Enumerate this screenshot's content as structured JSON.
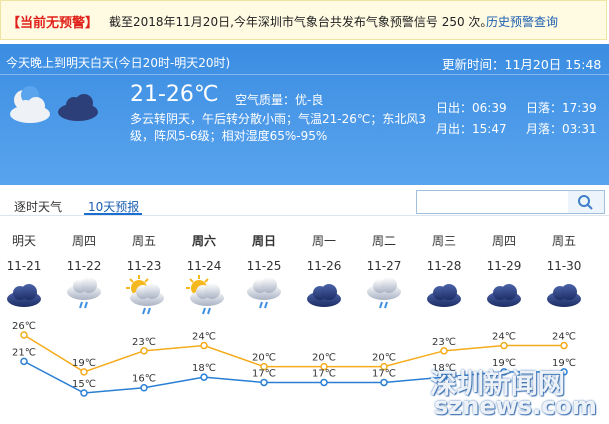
{
  "banner": {
    "alert": "【当前无预警】",
    "text": "截至2018年11月20日,今年深圳市气象台共发布气象预警信号 250 次。",
    "link": "历史预警查询"
  },
  "today": {
    "period": "今天晚上到明天白天(今日20时-明天20时)",
    "updated": "更新时间：11月20日 15:48",
    "temp": "21-26℃",
    "air": "空气质量：优-良",
    "desc": "多云转阴天，午后转分散小雨；气温21-26℃；东北风3级，阵风5-6级；相对湿度65%-95%",
    "sunrise": "日出：06:39",
    "sunset": "日落：17:39",
    "moonrise": "月出：15:47",
    "moonset": "月落：03:31"
  },
  "tabs": [
    "逐时天气",
    "10天预报"
  ],
  "forecast": {
    "weekdays": [
      "明天",
      "周四",
      "周五",
      "周六",
      "周日",
      "周一",
      "周二",
      "周三",
      "周四",
      "周五"
    ],
    "dates": [
      "11-21",
      "11-22",
      "11-23",
      "11-24",
      "11-25",
      "11-26",
      "11-27",
      "11-28",
      "11-29",
      "11-30"
    ],
    "high": [
      26,
      19,
      23,
      24,
      20,
      20,
      20,
      23,
      24,
      24
    ],
    "high_labels": [
      "26℃",
      "19℃",
      "23℃",
      "24℃",
      "20℃",
      "20℃",
      "20℃",
      "23℃",
      "24℃",
      "24℃"
    ],
    "low": [
      21,
      15,
      16,
      18,
      17,
      17,
      17,
      18,
      19,
      19
    ],
    "low_labels": [
      "21℃",
      "15℃",
      "16℃",
      "18℃",
      "17℃",
      "17℃",
      "17℃",
      "18℃",
      "19℃",
      "19℃"
    ]
  },
  "watermark": {
    "cn": "深圳新闻网",
    "en": "sznews.com"
  }
}
